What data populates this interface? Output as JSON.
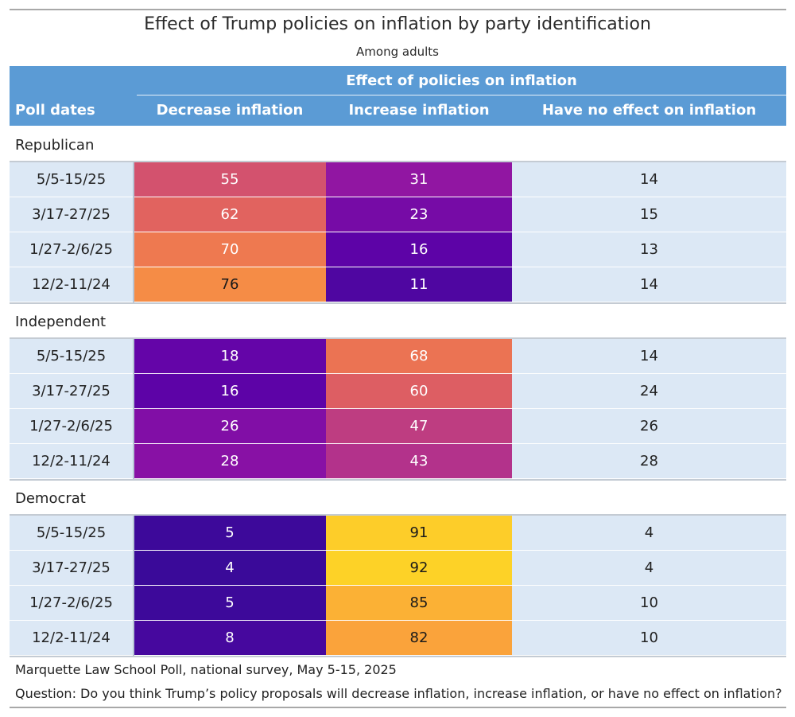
{
  "chart_data": {
    "type": "table",
    "title": "Effect of Trump policies on inflation by party identification",
    "subtitle": "Among adults",
    "header": {
      "first_col": "Poll dates",
      "spanner": "Effect of policies on inflation",
      "columns": [
        "Decrease inflation",
        "Increase inflation",
        "Have no effect on inflation"
      ]
    },
    "groups": [
      {
        "name": "Republican",
        "rows": [
          {
            "date": "5/5-15/25",
            "decrease": 55,
            "increase": 31,
            "none": 14
          },
          {
            "date": "3/17-27/25",
            "decrease": 62,
            "increase": 23,
            "none": 15
          },
          {
            "date": "1/27-2/6/25",
            "decrease": 70,
            "increase": 16,
            "none": 13
          },
          {
            "date": "12/2-11/24",
            "decrease": 76,
            "increase": 11,
            "none": 14
          }
        ]
      },
      {
        "name": "Independent",
        "rows": [
          {
            "date": "5/5-15/25",
            "decrease": 18,
            "increase": 68,
            "none": 14
          },
          {
            "date": "3/17-27/25",
            "decrease": 16,
            "increase": 60,
            "none": 24
          },
          {
            "date": "1/27-2/6/25",
            "decrease": 26,
            "increase": 47,
            "none": 26
          },
          {
            "date": "12/2-11/24",
            "decrease": 28,
            "increase": 43,
            "none": 28
          }
        ]
      },
      {
        "name": "Democrat",
        "rows": [
          {
            "date": "5/5-15/25",
            "decrease": 5,
            "increase": 91,
            "none": 4
          },
          {
            "date": "3/17-27/25",
            "decrease": 4,
            "increase": 92,
            "none": 4
          },
          {
            "date": "1/27-2/6/25",
            "decrease": 5,
            "increase": 85,
            "none": 10
          },
          {
            "date": "12/2-11/24",
            "decrease": 8,
            "increase": 82,
            "none": 10
          }
        ]
      }
    ],
    "source": "Marquette Law School Poll, national survey, May 5-15, 2025",
    "question": "Question: Do you think Trump’s policy proposals will decrease inflation, increase inflation, or have no effect on inflation?"
  },
  "colors": {
    "header_bg": "#5b9bd5",
    "row_bg": "#dce8f5",
    "scale": [
      "#3a0a99",
      "#5f03a8",
      "#8c12a5",
      "#b02f8e",
      "#d2506f",
      "#ea6f55",
      "#f99740",
      "#fdd227"
    ]
  }
}
